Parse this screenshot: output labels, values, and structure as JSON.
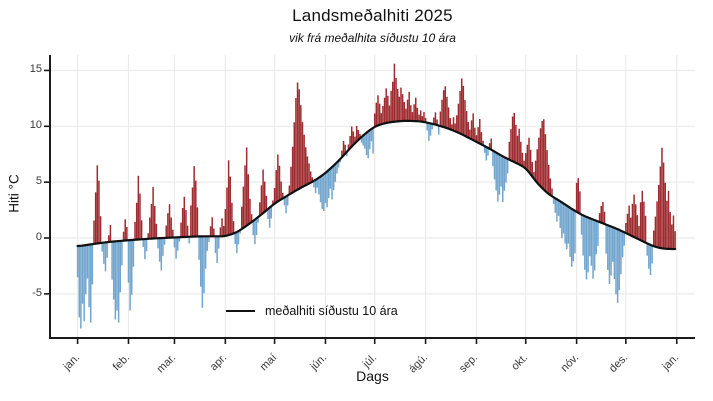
{
  "chart": {
    "title": "Landsmeðalhiti 2025",
    "subtitle": "vik frá meðalhita síðustu 10 ára",
    "xlabel": "Dags",
    "ylabel": "Hiti °C",
    "legend_label": "meðalhiti síðustu 10 ára"
  },
  "chart_data": {
    "type": "bar",
    "title": "Landsmeðalhiti 2025",
    "subtitle": "vik frá meðalhita síðustu 10 ára",
    "xlabel": "Dags",
    "ylabel": "Hiti °C",
    "x_unit": "day_of_year_2025",
    "x_tick_labels": [
      "jan.",
      "feb.",
      "mar.",
      "apr.",
      "maí",
      "jún.",
      "júl.",
      "ágú.",
      "sep.",
      "okt.",
      "nóv.",
      "des.",
      "jan."
    ],
    "x_tick_days": [
      1,
      32,
      60,
      91,
      121,
      152,
      182,
      213,
      244,
      274,
      305,
      335,
      366
    ],
    "y_ticks": [
      15,
      10,
      5,
      0,
      -5
    ],
    "ylim": [
      -8.8,
      16.5
    ],
    "grid": true,
    "legend": {
      "label": "meðalhiti síðustu 10 ára",
      "position": "bottom-center"
    },
    "colors": {
      "above_mean": "#9e2b2f",
      "below_mean": "#72a5cd",
      "mean_line": "#111111",
      "grid": "#ebebeb",
      "axis": "#1a1a1a"
    },
    "encoding_note": "Each daily bar spans from the 10-year mean curve to mean+deviation; red = warmer than mean, blue = colder.",
    "mean_line_anchors_day_value": [
      [
        1,
        -0.75
      ],
      [
        10,
        -0.55
      ],
      [
        20,
        -0.35
      ],
      [
        32,
        -0.2
      ],
      [
        46,
        -0.05
      ],
      [
        60,
        0.05
      ],
      [
        75,
        0.15
      ],
      [
        91,
        0.15
      ],
      [
        98,
        0.5
      ],
      [
        105,
        1.2
      ],
      [
        113,
        2.1
      ],
      [
        121,
        3.1
      ],
      [
        130,
        3.9
      ],
      [
        137,
        4.5
      ],
      [
        145,
        5.1
      ],
      [
        152,
        5.8
      ],
      [
        160,
        6.9
      ],
      [
        168,
        8.2
      ],
      [
        175,
        9.2
      ],
      [
        182,
        10.0
      ],
      [
        190,
        10.35
      ],
      [
        200,
        10.5
      ],
      [
        210,
        10.45
      ],
      [
        218,
        10.2
      ],
      [
        227,
        9.8
      ],
      [
        235,
        9.3
      ],
      [
        244,
        8.6
      ],
      [
        252,
        8.0
      ],
      [
        260,
        7.3
      ],
      [
        267,
        6.8
      ],
      [
        274,
        6.3
      ],
      [
        281,
        4.9
      ],
      [
        288,
        3.9
      ],
      [
        295,
        3.3
      ],
      [
        302,
        2.6
      ],
      [
        309,
        2.0
      ],
      [
        316,
        1.6
      ],
      [
        323,
        1.2
      ],
      [
        330,
        0.8
      ],
      [
        337,
        0.3
      ],
      [
        344,
        -0.2
      ],
      [
        351,
        -0.7
      ],
      [
        357,
        -0.95
      ],
      [
        365,
        -1.0
      ]
    ],
    "daily_deviation_from_mean": [
      -2.8,
      -6.4,
      -7.4,
      -5.2,
      -6.8,
      -4.4,
      -3.0,
      -5.6,
      -7.0,
      -3.6,
      2.1,
      4.6,
      7.0,
      5.6,
      2.4,
      -0.8,
      -1.9,
      -2.6,
      -1.4,
      0.6,
      1.5,
      -3.4,
      -5.2,
      -7.0,
      -6.2,
      -7.3,
      -4.6,
      -2.2,
      0.8,
      1.9,
      1.2,
      -3.8,
      -6.3,
      -4.9,
      -2.4,
      1.6,
      3.3,
      5.7,
      4.1,
      1.7,
      -0.7,
      -1.8,
      -1.1,
      0.5,
      1.9,
      3.1,
      4.6,
      2.9,
      1.3,
      -0.9,
      -2.1,
      -2.9,
      -1.6,
      -0.6,
      1.1,
      2.2,
      3.0,
      1.8,
      0.7,
      -0.9,
      -1.9,
      -1.2,
      -0.4,
      1.3,
      2.6,
      3.6,
      2.4,
      1.0,
      -0.6,
      2.8,
      4.4,
      6.3,
      5.0,
      2.6,
      -2.1,
      -4.5,
      -6.4,
      -5.1,
      -2.9,
      -1.3,
      -0.5,
      0.9,
      1.7,
      0.7,
      -1.5,
      -2.4,
      -1.1,
      0.8,
      1.6,
      0.9,
      2.4,
      4.3,
      6.7,
      5.2,
      2.8,
      1.1,
      -1.0,
      -1.9,
      -1.2,
      -0.3,
      2.0,
      3.7,
      5.5,
      7.0,
      4.5,
      2.2,
      0.7,
      -1.3,
      -2.2,
      -1.5,
      -0.5,
      1.2,
      2.6,
      3.9,
      2.7,
      1.3,
      -0.9,
      -1.8,
      -1.1,
      0.4,
      1.4,
      2.9,
      4.2,
      3.1,
      1.6,
      0.5,
      -0.7,
      -1.5,
      -0.9,
      0.8,
      2.4,
      4.1,
      6.2,
      8.3,
      9.6,
      8.9,
      7.4,
      5.8,
      4.6,
      3.4,
      2.5,
      1.8,
      1.0,
      0.4,
      -0.6,
      -1.2,
      -0.8,
      -1.5,
      -2.3,
      -3.0,
      -3.3,
      -2.7,
      -3.2,
      -2.5,
      -1.8,
      -2.9,
      -2.2,
      -1.6,
      -1.0,
      -0.6,
      -0.3,
      0.6,
      1.3,
      0.8,
      -0.4,
      0.5,
      1.1,
      1.8,
      1.2,
      0.6,
      1.4,
      0.9,
      0.4,
      -0.5,
      -0.9,
      -1.3,
      -2.0,
      -2.4,
      -1.7,
      -1.1,
      -2.3,
      1.2,
      2.1,
      2.7,
      1.9,
      1.0,
      1.6,
      2.3,
      3.1,
      2.4,
      1.5,
      2.8,
      3.6,
      5.2,
      3.9,
      2.9,
      2.2,
      3.0,
      2.4,
      1.7,
      1.1,
      1.9,
      2.6,
      1.4,
      0.8,
      1.5,
      2.1,
      1.2,
      0.6,
      1.0,
      0.5,
      0.9,
      0.4,
      -0.7,
      -1.6,
      -1.1,
      -0.5,
      0.6,
      1.1,
      0.5,
      -0.8,
      1.3,
      2.4,
      3.3,
      3.7,
      2.8,
      1.9,
      1.0,
      0.5,
      1.2,
      0.7,
      1.5,
      2.6,
      3.8,
      5.0,
      4.4,
      3.2,
      2.3,
      1.4,
      0.8,
      1.7,
      2.4,
      1.2,
      0.6,
      1.4,
      2.2,
      1.1,
      0.4,
      -0.6,
      -1.2,
      -0.7,
      0.5,
      1.0,
      -1.4,
      -2.5,
      -3.4,
      -4.3,
      -3.6,
      -2.8,
      -4.1,
      -3.0,
      -2.2,
      -1.3,
      1.6,
      2.8,
      4.0,
      4.4,
      3.4,
      2.5,
      3.2,
      2.1,
      1.2,
      0.6,
      1.4,
      2.3,
      3.1,
      2.2,
      1.3,
      0.6,
      1.8,
      3.0,
      4.2,
      5.2,
      6.0,
      6.3,
      5.1,
      3.8,
      2.6,
      1.5,
      0.7,
      -0.6,
      -1.3,
      -2.0,
      -1.4,
      -2.4,
      -3.2,
      -2.7,
      -3.5,
      -3.9,
      -3.3,
      -4.4,
      -5.2,
      -4.6,
      -3.8,
      2.6,
      3.1,
      2.0,
      -1.8,
      -3.6,
      -4.8,
      -5.6,
      -4.9,
      -3.4,
      -4.2,
      -5.3,
      -4.5,
      -3.0,
      -2.2,
      0.8,
      1.5,
      1.9,
      1.1,
      -2.6,
      -4.0,
      -5.2,
      -4.4,
      -3.1,
      -4.6,
      -5.9,
      -6.6,
      -5.4,
      -3.9,
      -2.3,
      -1.2,
      0.9,
      1.8,
      2.6,
      1.6,
      2.9,
      3.8,
      3.0,
      2.1,
      1.2,
      3.4,
      4.5,
      3.6,
      2.4,
      -1.1,
      -2.2,
      -2.7,
      -1.6,
      1.4,
      2.7,
      4.1,
      5.6,
      7.3,
      9.0,
      7.7,
      5.9,
      4.3,
      5.2,
      3.3,
      2.2,
      3.0,
      1.6
    ]
  }
}
